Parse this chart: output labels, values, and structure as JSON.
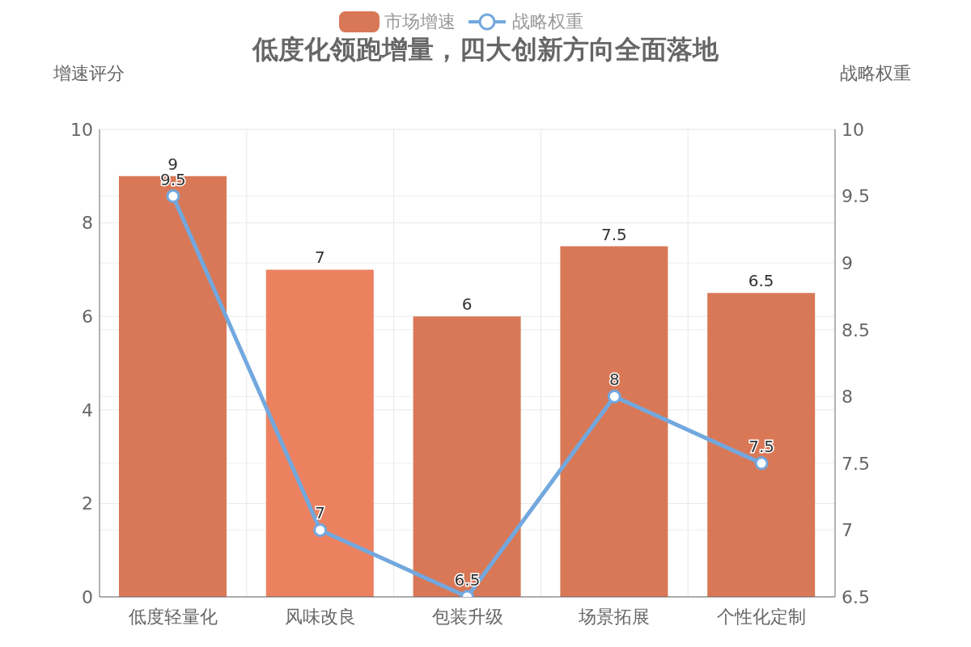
{
  "chart_data": {
    "type": "bar",
    "title": "低度化领跑增量，四大创新方向全面落地",
    "categories": [
      "低度轻量化",
      "风味改良",
      "包装升级",
      "场景拓展",
      "个性化定制"
    ],
    "ylabel": "增速评分",
    "y2label": "战略权重",
    "ylim": [
      0,
      10
    ],
    "yticks": [
      0,
      2,
      4,
      6,
      8,
      10
    ],
    "y2lim": [
      6.5,
      10
    ],
    "y2ticks": [
      6.5,
      7,
      7.5,
      8,
      8.5,
      9,
      9.5,
      10
    ],
    "series": [
      {
        "name": "市场增速",
        "colors": [
          "#d97857",
          "#ec8160",
          "#d97857",
          "#d97857",
          "#d97857"
        ],
        "color": "#d97857",
        "values": [
          9,
          7,
          6,
          7.5,
          6.5
        ]
      },
      {
        "name": "战略权重",
        "type": "line",
        "axis": "y2",
        "color": "#72a8de",
        "marker": "circle",
        "values": [
          9.5,
          7,
          6.5,
          8,
          7.5
        ]
      }
    ],
    "data_labels": true,
    "grid": true,
    "legend": "top"
  }
}
